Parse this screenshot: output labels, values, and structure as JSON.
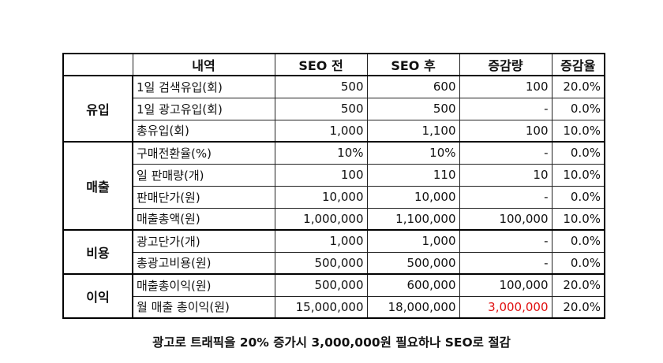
{
  "table": {
    "headers": [
      "",
      "내역",
      "SEO 전",
      "SEO 후",
      "증감량",
      "증감율"
    ],
    "groups": [
      {
        "category": "유입",
        "rows": [
          {
            "label": "1일 검색유입(회)",
            "before": "500",
            "after": "600",
            "change": "100",
            "rate": "20.0%"
          },
          {
            "label": "1일 광고유입(회)",
            "before": "500",
            "after": "500",
            "change": "-",
            "rate": "0.0%"
          },
          {
            "label": "총유입(회)",
            "before": "1,000",
            "after": "1,100",
            "change": "100",
            "rate": "10.0%"
          }
        ]
      },
      {
        "category": "매출",
        "rows": [
          {
            "label": "구매전환율(%)",
            "before": "10%",
            "after": "10%",
            "change": "-",
            "rate": "0.0%"
          },
          {
            "label": "일 판매량(개)",
            "before": "100",
            "after": "110",
            "change": "10",
            "rate": "10.0%"
          },
          {
            "label": "판매단가(원)",
            "before": "10,000",
            "after": "10,000",
            "change": "-",
            "rate": "0.0%"
          },
          {
            "label": "매출총액(원)",
            "before": "1,000,000",
            "after": "1,100,000",
            "change": "100,000",
            "rate": "10.0%"
          }
        ]
      },
      {
        "category": "비용",
        "rows": [
          {
            "label": "광고단가(개)",
            "before": "1,000",
            "after": "1,000",
            "change": "-",
            "rate": "0.0%"
          },
          {
            "label": "총광고비용(원)",
            "before": "500,000",
            "after": "500,000",
            "change": "-",
            "rate": "0.0%"
          }
        ]
      },
      {
        "category": "이익",
        "rows": [
          {
            "label": "매출총이익(원)",
            "before": "500,000",
            "after": "600,000",
            "change": "100,000",
            "rate": "20.0%"
          },
          {
            "label": "월 매출 총이익(원)",
            "before": "15,000,000",
            "after": "18,000,000",
            "change": "3,000,000",
            "rate": "20.0%",
            "change_color": "#e01010"
          }
        ]
      }
    ]
  },
  "caption": "광고로 트래픽을 20% 증가시 3,000,000원 필요하나 SEO로 절감"
}
